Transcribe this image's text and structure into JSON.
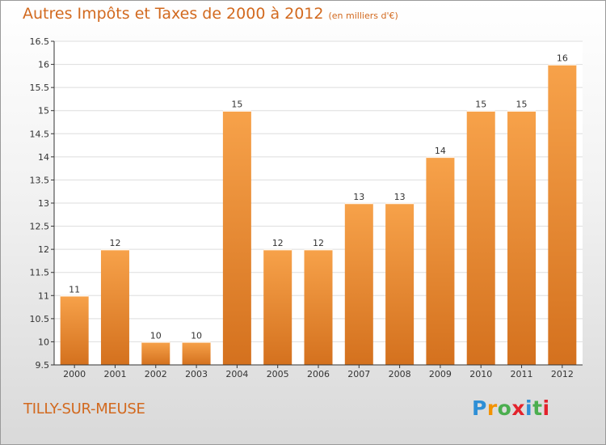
{
  "page": {
    "title": "Autres Impôts et Taxes de 2000 à 2012",
    "subtitle": "(en milliers d'€)",
    "commune": "TILLY-SUR-MEUSE"
  },
  "logo": {
    "text": "Proxiti",
    "letter_colors": [
      "#2e8fd6",
      "#f39200",
      "#4bae4f",
      "#e3232c",
      "#2e8fd6",
      "#4bae4f",
      "#e3232c"
    ]
  },
  "chart_data": {
    "type": "bar",
    "title": "Autres Impôts et Taxes de 2000 à 2012",
    "subtitle": "(en milliers d'€)",
    "xlabel": "",
    "ylabel": "",
    "categories": [
      "2000",
      "2001",
      "2002",
      "2003",
      "2004",
      "2005",
      "2006",
      "2007",
      "2008",
      "2009",
      "2010",
      "2011",
      "2012"
    ],
    "values": [
      11,
      12,
      10,
      10,
      15,
      12,
      12,
      13,
      13,
      14,
      15,
      15,
      16
    ],
    "data_labels": [
      "11",
      "12",
      "10",
      "10",
      "15",
      "12",
      "12",
      "13",
      "13",
      "14",
      "15",
      "15",
      "16"
    ],
    "ylim": [
      9.5,
      16.5
    ],
    "yticks": [
      "9.5",
      "10",
      "10.5",
      "11",
      "11.5",
      "12",
      "12.5",
      "13",
      "13.5",
      "14",
      "14.5",
      "15",
      "15.5",
      "16",
      "16.5"
    ],
    "grid": true,
    "colors": {
      "bar_light": "#f7a24a",
      "bar_dark": "#d4711e",
      "title": "#d2691e",
      "axis": "#333333",
      "grid": "#dddddd"
    }
  }
}
